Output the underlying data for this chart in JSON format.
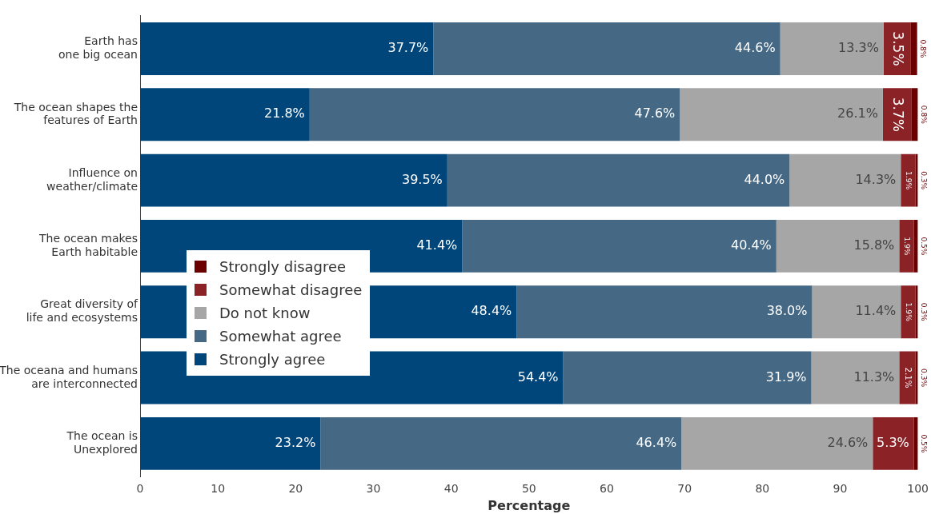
{
  "chart_data": {
    "type": "bar",
    "orientation": "horizontal",
    "stacked": true,
    "xlabel": "Percentage",
    "categories": [
      "Earth has one big ocean",
      "The ocean shapes the features of Earth",
      "Influence on weather/climate",
      "The ocean makes Earth habitable",
      "Great diversity of life and ecosystems",
      "The oceana and humans are interconnected",
      "The ocean is Unexplored"
    ],
    "series": [
      {
        "name": "Strongly agree",
        "color": "#00467a",
        "values": [
          37.7,
          21.8,
          39.5,
          41.4,
          48.4,
          54.4,
          23.2
        ],
        "value_labels": [
          "37.7%",
          "21.8%",
          "39.5%",
          "41.4%",
          "48.4%",
          "54.4%",
          "23.2%"
        ]
      },
      {
        "name": "Somewhat agree",
        "color": "#456985",
        "values": [
          44.6,
          47.6,
          44.0,
          40.4,
          38.0,
          31.9,
          46.4
        ],
        "value_labels": [
          "44.6%",
          "47.6%",
          "44.0%",
          "40.4%",
          "38.0%",
          "31.9%",
          "46.4%"
        ]
      },
      {
        "name": "Do not know",
        "color": "#a6a6a6",
        "values": [
          13.3,
          26.1,
          14.3,
          15.8,
          11.4,
          11.3,
          24.6
        ],
        "value_labels": [
          "13.3%",
          "26.1%",
          "14.3%",
          "15.8%",
          "11.4%",
          "11.3%",
          "24.6%"
        ]
      },
      {
        "name": "Somewhat disagree",
        "color": "#8b2226",
        "values": [
          3.5,
          3.7,
          1.9,
          1.9,
          1.9,
          2.1,
          5.3
        ],
        "value_labels": [
          "3.5%",
          "3.7%",
          "1.9%",
          "1.9%",
          "1.9%",
          "2.1%",
          "5.3%"
        ]
      },
      {
        "name": "Strongly disagree",
        "color": "#6b0000",
        "values": [
          0.8,
          0.8,
          0.3,
          0.5,
          0.3,
          0.3,
          0.5
        ],
        "value_labels": [
          "0.8%",
          "0.8%",
          "0.3%",
          "0.5%",
          "0.3%",
          "0.3%",
          "0.5%"
        ]
      }
    ],
    "xlim": [
      0,
      100
    ],
    "xticks": [
      0,
      10,
      20,
      30,
      40,
      50,
      60,
      70,
      80,
      90,
      100
    ],
    "grid": false,
    "legend": "left"
  }
}
